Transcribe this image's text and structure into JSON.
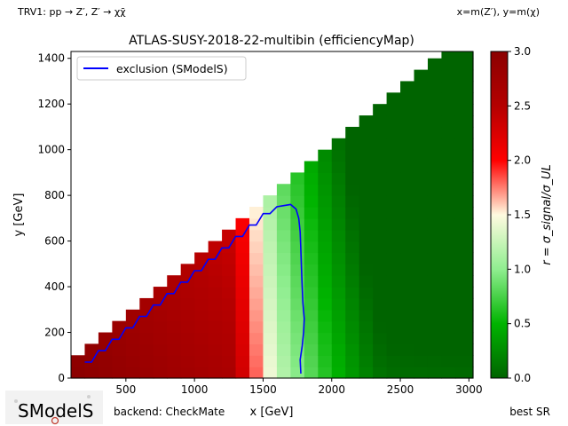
{
  "header": {
    "process": "TRV1: pp → Z′, Z′ → χχ̄",
    "axis_definition": "x=m(Z′), y=m(χ)"
  },
  "footer": {
    "logo_text": "SModelS",
    "backend": "backend: CheckMate",
    "best_sr": "best SR"
  },
  "chart_data": {
    "type": "heatmap",
    "title": "ATLAS-SUSY-2018-22-multibin (efficiencyMap)",
    "xlabel": "x [GeV]",
    "ylabel": "y [GeV]",
    "xlim": [
      100,
      3030
    ],
    "ylim": [
      0,
      1430
    ],
    "xticks": [
      500,
      1000,
      1500,
      2000,
      2500,
      3000
    ],
    "yticks": [
      0,
      200,
      400,
      600,
      800,
      1000,
      1200,
      1400
    ],
    "colorbar": {
      "label": "r = σ_signal/σ_UL",
      "range": [
        0.0,
        3.0
      ],
      "ticks": [
        0.0,
        0.5,
        1.0,
        1.5,
        2.0,
        2.5,
        3.0
      ],
      "tick_labels": [
        "0.0",
        "0.5",
        "1.0",
        "1.5",
        "2.0",
        "2.5",
        "3.0"
      ],
      "colormap": "green-white-red",
      "colors": [
        "#006400",
        "#00b400",
        "#90ee90",
        "#fffae0",
        "#ff0000",
        "#b40000",
        "#8b0000"
      ]
    },
    "grid": false,
    "legend": {
      "placement": "top-left",
      "entries": [
        "exclusion (SModelS)"
      ]
    },
    "cell_width": 100,
    "cell_height": 50,
    "region": "y <= x/2",
    "r_profile": {
      "x": [
        100,
        1300,
        1400,
        1500,
        1600,
        1700,
        1800,
        1900,
        2000,
        2100,
        2200,
        2300,
        2400,
        3000
      ],
      "r": [
        3.0,
        2.6,
        2.0,
        1.6,
        1.25,
        1.05,
        0.9,
        0.7,
        0.55,
        0.4,
        0.25,
        0.12,
        0.05,
        0.03
      ]
    },
    "series": [
      {
        "name": "exclusion (SModelS)",
        "color": "#0000ff",
        "x": [
          200,
          250,
          300,
          350,
          400,
          450,
          500,
          550,
          600,
          650,
          700,
          750,
          800,
          850,
          900,
          950,
          1000,
          1050,
          1100,
          1150,
          1200,
          1250,
          1300,
          1350,
          1400,
          1450,
          1500,
          1550,
          1600,
          1650,
          1700,
          1740,
          1760,
          1770,
          1775,
          1780,
          1785,
          1790,
          1800,
          1795,
          1785,
          1770,
          1775
        ],
        "y": [
          70,
          70,
          120,
          120,
          170,
          170,
          220,
          220,
          270,
          270,
          320,
          320,
          370,
          370,
          420,
          420,
          470,
          470,
          520,
          520,
          570,
          570,
          620,
          620,
          670,
          670,
          720,
          720,
          750,
          755,
          760,
          740,
          700,
          640,
          560,
          480,
          400,
          330,
          260,
          200,
          140,
          80,
          20
        ]
      }
    ]
  }
}
